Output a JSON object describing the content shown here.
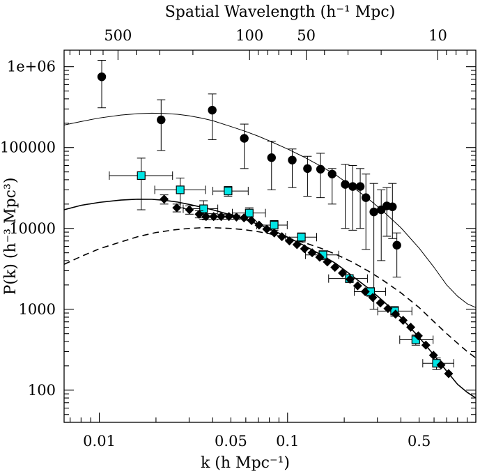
{
  "chart_data": {
    "type": "scatter",
    "xscale": "log",
    "yscale": "log",
    "xlim": [
      0.0065,
      1.0
    ],
    "ylim": [
      40,
      1600000
    ],
    "grid": false,
    "xlabel": "k (h Mpc⁻¹)",
    "ylabel": "P(k) (h⁻³ Mpc³)",
    "top_axis_label": "Spatial Wavelength (h⁻¹ Mpc)",
    "x_ticks": [
      {
        "value": 0.01,
        "label": "0.01"
      },
      {
        "value": 0.05,
        "label": "0.05"
      },
      {
        "value": 0.1,
        "label": "0.1"
      },
      {
        "value": 0.5,
        "label": "0.5"
      }
    ],
    "y_ticks": [
      {
        "value": 100,
        "label": "100"
      },
      {
        "value": 1000,
        "label": "1000"
      },
      {
        "value": 10000,
        "label": "10000"
      },
      {
        "value": 100000,
        "label": "100000"
      },
      {
        "value": 1000000,
        "label": "1e+06"
      }
    ],
    "top_ticks": [
      {
        "value": 500,
        "label": "500"
      },
      {
        "value": 100,
        "label": "100"
      },
      {
        "value": 50,
        "label": "50"
      },
      {
        "value": 10,
        "label": "10"
      }
    ],
    "series": [
      {
        "marker": "circle",
        "color": "#000000",
        "points": [
          {
            "x": 0.0103,
            "y": 750000,
            "ylo": 310000,
            "yhi": 1200000
          },
          {
            "x": 0.0213,
            "y": 220000,
            "ylo": 92000,
            "yhi": 390000
          },
          {
            "x": 0.0398,
            "y": 290000,
            "ylo": 125000,
            "yhi": 460000
          },
          {
            "x": 0.0589,
            "y": 130000,
            "ylo": 55000,
            "yhi": 195000
          },
          {
            "x": 0.0822,
            "y": 75000,
            "ylo": 30000,
            "yhi": 120000
          },
          {
            "x": 0.1059,
            "y": 70000,
            "ylo": 32000,
            "yhi": 96000
          },
          {
            "x": 0.1276,
            "y": 55000,
            "ylo": 25000,
            "yhi": 78000
          },
          {
            "x": 0.1497,
            "y": 54000,
            "ylo": 24000,
            "yhi": 85000
          },
          {
            "x": 0.1725,
            "y": 47000,
            "ylo": 20000,
            "yhi": 55000
          },
          {
            "x": 0.2024,
            "y": 35000,
            "ylo": 10000,
            "yhi": 62000
          },
          {
            "x": 0.2219,
            "y": 33000,
            "ylo": 9500,
            "yhi": 60000
          },
          {
            "x": 0.2432,
            "y": 33000,
            "ylo": 10000,
            "yhi": 55000
          },
          {
            "x": 0.2607,
            "y": 24000,
            "ylo": 5500,
            "yhi": 47000
          },
          {
            "x": 0.2873,
            "y": 16000,
            "ylo": 1000,
            "yhi": 36000
          },
          {
            "x": 0.3144,
            "y": 17000,
            "ylo": 4000,
            "yhi": 30000
          },
          {
            "x": 0.3367,
            "y": 19000,
            "ylo": 8000,
            "yhi": 32000
          },
          {
            "x": 0.3606,
            "y": 18500,
            "ylo": 7500,
            "yhi": 36000
          },
          {
            "x": 0.3807,
            "y": 6200,
            "ylo": 2500,
            "yhi": 8800
          }
        ]
      },
      {
        "marker": "square",
        "color": "#00e5e5",
        "points": [
          {
            "x": 0.0167,
            "y": 45000,
            "ylo": 17000,
            "yhi": 74000,
            "xlo": 0.0113,
            "xhi": 0.0245
          },
          {
            "x": 0.0269,
            "y": 30000,
            "ylo": 18000,
            "yhi": 42000,
            "xlo": 0.0197,
            "xhi": 0.0366
          },
          {
            "x": 0.0358,
            "y": 17500,
            "ylo": 13000,
            "yhi": 22000,
            "xlo": 0.0279,
            "xhi": 0.0426
          },
          {
            "x": 0.0483,
            "y": 29000,
            "ylo": 25000,
            "yhi": 33000,
            "xlo": 0.0401,
            "xhi": 0.0618
          },
          {
            "x": 0.0626,
            "y": 15500,
            "ylo": 13000,
            "yhi": 18000,
            "xlo": 0.0509,
            "xhi": 0.0763
          },
          {
            "x": 0.0849,
            "y": 11000,
            "ylo": 9500,
            "yhi": 12500,
            "xlo": 0.0686,
            "xhi": 0.0996
          },
          {
            "x": 0.1184,
            "y": 7800,
            "ylo": 6800,
            "yhi": 8800,
            "xlo": 0.0976,
            "xhi": 0.1427
          },
          {
            "x": 0.1541,
            "y": 4700,
            "ylo": 4100,
            "yhi": 5300,
            "xlo": 0.1246,
            "xhi": 0.1869
          },
          {
            "x": 0.2129,
            "y": 2400,
            "ylo": 2150,
            "yhi": 2650,
            "xlo": 0.1653,
            "xhi": 0.2656
          },
          {
            "x": 0.2761,
            "y": 1650,
            "ylo": 1450,
            "yhi": 1850,
            "xlo": 0.2262,
            "xhi": 0.3319
          },
          {
            "x": 0.3704,
            "y": 950,
            "ylo": 820,
            "yhi": 1080,
            "xlo": 0.3013,
            "xhi": 0.4576
          },
          {
            "x": 0.4799,
            "y": 420,
            "ylo": 360,
            "yhi": 480,
            "xlo": 0.3943,
            "xhi": 0.5931
          },
          {
            "x": 0.6181,
            "y": 215,
            "ylo": 180,
            "yhi": 250,
            "xlo": 0.5225,
            "xhi": 0.7641
          }
        ]
      },
      {
        "marker": "diamond",
        "color": "#000000",
        "points": [
          {
            "x": 0.0221,
            "y": 23000,
            "ylo": 20000,
            "yhi": 26000
          },
          {
            "x": 0.0258,
            "y": 18000,
            "ylo": 16000,
            "yhi": 20000
          },
          {
            "x": 0.0301,
            "y": 17000,
            "ylo": 15000,
            "yhi": 19000
          },
          {
            "x": 0.0339,
            "y": 15000,
            "ylo": 13500,
            "yhi": 16500
          },
          {
            "x": 0.0369,
            "y": 14000,
            "ylo": 12800,
            "yhi": 15200
          },
          {
            "x": 0.0405,
            "y": 14000,
            "ylo": 12800,
            "yhi": 15200
          },
          {
            "x": 0.0444,
            "y": 14000,
            "ylo": 13000,
            "yhi": 15000
          },
          {
            "x": 0.0488,
            "y": 14000,
            "ylo": 13000,
            "yhi": 15000
          },
          {
            "x": 0.0535,
            "y": 13800,
            "ylo": 13000,
            "yhi": 14600
          },
          {
            "x": 0.0587,
            "y": 13500
          },
          {
            "x": 0.0644,
            "y": 12500
          },
          {
            "x": 0.0706,
            "y": 11000
          },
          {
            "x": 0.0775,
            "y": 9800
          },
          {
            "x": 0.085,
            "y": 8800
          },
          {
            "x": 0.0933,
            "y": 7900
          },
          {
            "x": 0.1023,
            "y": 7000
          },
          {
            "x": 0.1122,
            "y": 6300
          },
          {
            "x": 0.1231,
            "y": 5600
          },
          {
            "x": 0.1351,
            "y": 5000
          },
          {
            "x": 0.1482,
            "y": 4400
          },
          {
            "x": 0.1626,
            "y": 3850
          },
          {
            "x": 0.1784,
            "y": 3300
          },
          {
            "x": 0.1957,
            "y": 2800
          },
          {
            "x": 0.2147,
            "y": 2350
          },
          {
            "x": 0.2356,
            "y": 1950
          },
          {
            "x": 0.2585,
            "y": 1650
          },
          {
            "x": 0.2836,
            "y": 1400
          },
          {
            "x": 0.3112,
            "y": 1200
          },
          {
            "x": 0.3414,
            "y": 1020
          },
          {
            "x": 0.3746,
            "y": 870
          },
          {
            "x": 0.411,
            "y": 730
          },
          {
            "x": 0.451,
            "y": 600
          },
          {
            "x": 0.4948,
            "y": 470
          },
          {
            "x": 0.5429,
            "y": 360
          },
          {
            "x": 0.5957,
            "y": 270
          },
          {
            "x": 0.6535,
            "y": 205
          },
          {
            "x": 0.7171,
            "y": 160
          }
        ]
      }
    ],
    "curves": [
      {
        "style": "solid",
        "width": 1.0,
        "points": [
          [
            0.0065,
            190000
          ],
          [
            0.008,
            210000
          ],
          [
            0.01,
            232000
          ],
          [
            0.013,
            252000
          ],
          [
            0.016,
            262000
          ],
          [
            0.019,
            266000
          ],
          [
            0.022,
            264000
          ],
          [
            0.026,
            258000
          ],
          [
            0.03,
            247000
          ],
          [
            0.035,
            231000
          ],
          [
            0.04,
            215000
          ],
          [
            0.05,
            182000
          ],
          [
            0.06,
            158000
          ],
          [
            0.07,
            138000
          ],
          [
            0.08,
            121000
          ],
          [
            0.1,
            96000
          ],
          [
            0.12,
            78000
          ],
          [
            0.15,
            59000
          ],
          [
            0.18,
            46000
          ],
          [
            0.22,
            33000
          ],
          [
            0.27,
            23000
          ],
          [
            0.32,
            16500
          ],
          [
            0.4,
            10200
          ],
          [
            0.5,
            5700
          ],
          [
            0.6,
            3300
          ],
          [
            0.7,
            2000
          ],
          [
            0.8,
            1450
          ],
          [
            0.9,
            1170
          ],
          [
            1.0,
            1050
          ]
        ]
      },
      {
        "style": "solid",
        "width": 1.6,
        "points": [
          [
            0.0065,
            17000
          ],
          [
            0.008,
            19300
          ],
          [
            0.01,
            21000
          ],
          [
            0.013,
            22400
          ],
          [
            0.016,
            23000
          ],
          [
            0.019,
            22900
          ],
          [
            0.022,
            22300
          ],
          [
            0.026,
            21200
          ],
          [
            0.03,
            19800
          ],
          [
            0.035,
            18300
          ],
          [
            0.04,
            17000
          ],
          [
            0.05,
            14700
          ],
          [
            0.06,
            12800
          ],
          [
            0.07,
            11200
          ],
          [
            0.08,
            9900
          ],
          [
            0.1,
            7800
          ],
          [
            0.12,
            6300
          ],
          [
            0.15,
            4750
          ],
          [
            0.18,
            3700
          ],
          [
            0.22,
            2600
          ],
          [
            0.27,
            1800
          ],
          [
            0.32,
            1280
          ],
          [
            0.4,
            790
          ],
          [
            0.5,
            450
          ],
          [
            0.6,
            270
          ],
          [
            0.7,
            172
          ],
          [
            0.8,
            118
          ],
          [
            0.9,
            94
          ],
          [
            1.0,
            80
          ]
        ]
      },
      {
        "style": "dashed",
        "width": 1.6,
        "points": [
          [
            0.0065,
            3600
          ],
          [
            0.008,
            4500
          ],
          [
            0.01,
            5600
          ],
          [
            0.013,
            6800
          ],
          [
            0.016,
            7900
          ],
          [
            0.02,
            8900
          ],
          [
            0.025,
            9600
          ],
          [
            0.03,
            10000
          ],
          [
            0.035,
            10200
          ],
          [
            0.04,
            10200
          ],
          [
            0.05,
            10000
          ],
          [
            0.06,
            9600
          ],
          [
            0.07,
            9100
          ],
          [
            0.08,
            8600
          ],
          [
            0.1,
            7600
          ],
          [
            0.12,
            6800
          ],
          [
            0.15,
            5700
          ],
          [
            0.18,
            4800
          ],
          [
            0.22,
            3850
          ],
          [
            0.27,
            2950
          ],
          [
            0.32,
            2300
          ],
          [
            0.4,
            1600
          ],
          [
            0.5,
            1050
          ],
          [
            0.6,
            700
          ],
          [
            0.7,
            500
          ],
          [
            0.8,
            380
          ],
          [
            0.9,
            300
          ],
          [
            1.0,
            250
          ]
        ]
      }
    ]
  }
}
